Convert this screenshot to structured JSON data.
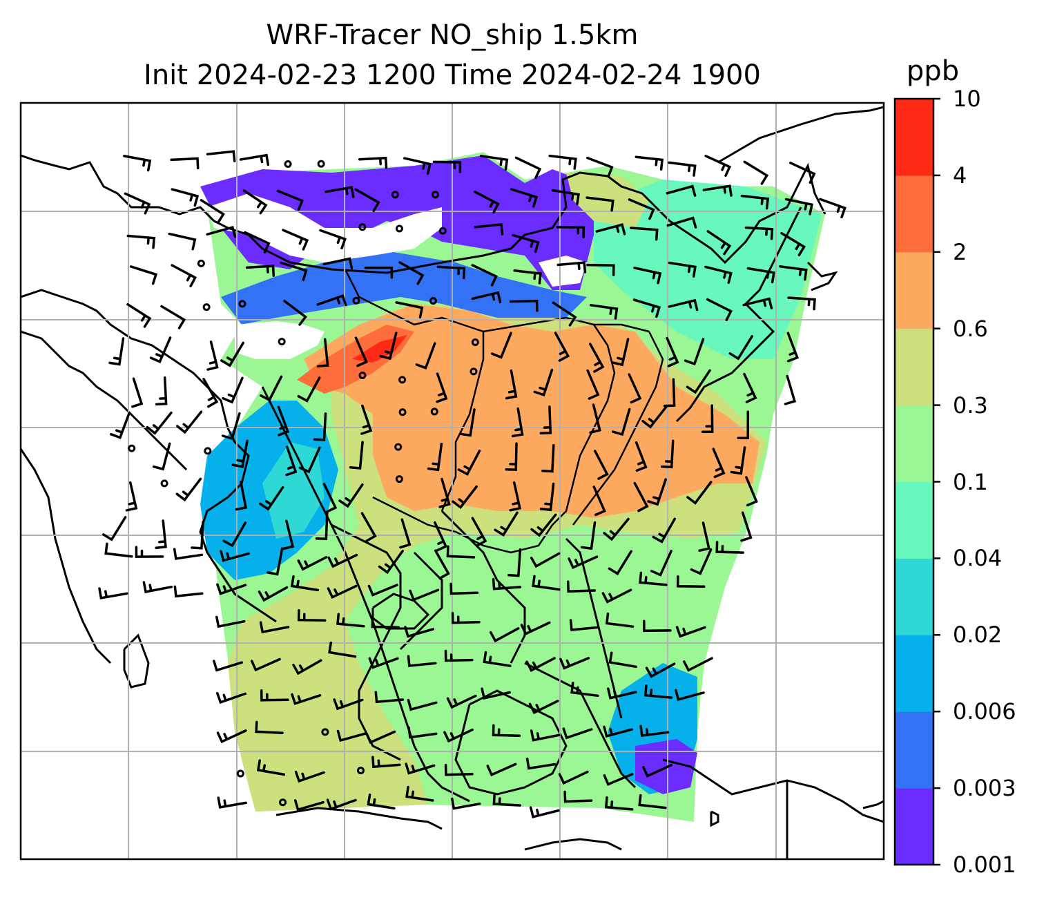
{
  "title": {
    "line1": "WRF-Tracer NO_ship 1.5km",
    "line2": "Init 2024-02-23 1200 Time 2024-02-24 1900"
  },
  "colorbar": {
    "unit": "ppb",
    "levels": [
      "0.001",
      "0.003",
      "0.006",
      "0.02",
      "0.04",
      "0.1",
      "0.3",
      "0.6",
      "2",
      "4",
      "10"
    ],
    "colors": [
      "#6a2cff",
      "#3472f5",
      "#06b0ea",
      "#2ed8d4",
      "#68f7bc",
      "#9bf694",
      "#cce07e",
      "#fdaa60",
      "#fd6e3a",
      "#ff2a16"
    ]
  },
  "map": {
    "projection": "lat-lon",
    "grid": true,
    "overlays": [
      "coastlines",
      "borders",
      "wind-barbs",
      "calm-circles"
    ],
    "field": "NO_ship tracer concentration"
  }
}
